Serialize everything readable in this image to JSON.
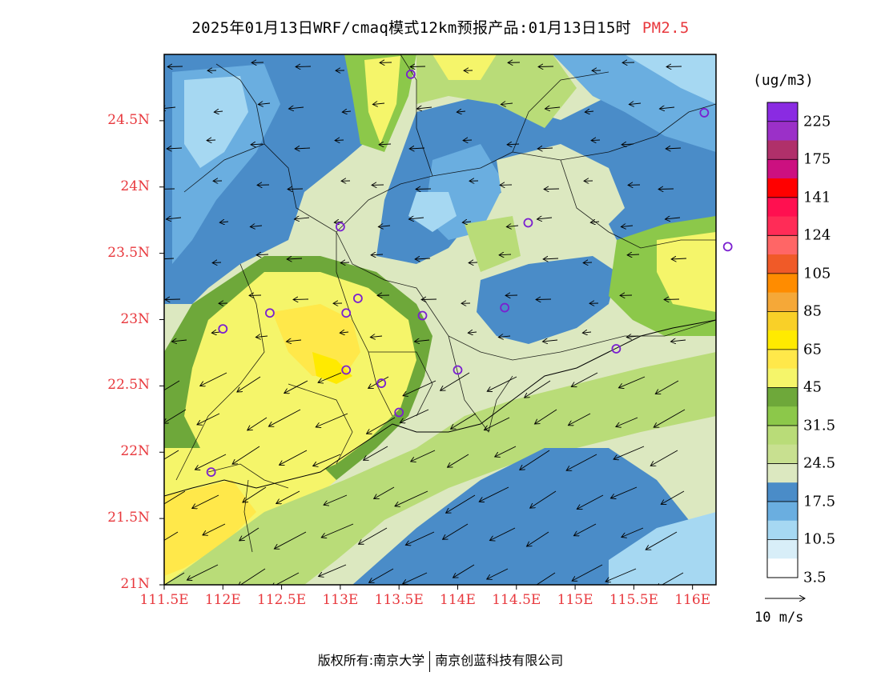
{
  "title": {
    "main": "2025年01月13日WRF/cmaq模式12km预报产品:01月13日15时",
    "variable": "PM2.5"
  },
  "axes": {
    "lat_ticks": [
      "24.5N",
      "24N",
      "23.5N",
      "23N",
      "22.5N",
      "22N",
      "21.5N",
      "21N"
    ],
    "lat_values": [
      24.5,
      24,
      23.5,
      23,
      22.5,
      22,
      21.5,
      21
    ],
    "lon_ticks": [
      "111.5E",
      "112E",
      "112.5E",
      "113E",
      "113.5E",
      "114E",
      "114.5E",
      "115E",
      "115.5E",
      "116E"
    ],
    "lon_values": [
      111.5,
      112,
      112.5,
      113,
      113.5,
      114,
      114.5,
      115,
      115.5,
      116
    ],
    "lat_range": [
      21,
      25
    ],
    "lon_range": [
      111.5,
      116.2
    ]
  },
  "colorbar": {
    "unit": "(ug/m3)",
    "labels": [
      "225",
      "175",
      "141",
      "124",
      "105",
      "85",
      "65",
      "45",
      "31.5",
      "24.5",
      "17.5",
      "10.5",
      "3.5"
    ],
    "colors": [
      "#8a2be2",
      "#9b30c8",
      "#b0306a",
      "#cc1080",
      "#ff0000",
      "#ff1050",
      "#ff2c57",
      "#ff6666",
      "#f05a28",
      "#ff8c00",
      "#f5a838",
      "#f9d028",
      "#ffea00",
      "#ffe84a",
      "#f5f56a",
      "#6ea83a",
      "#8cc84a",
      "#b9dc78",
      "#c8e090",
      "#dce8c0",
      "#4a8cc8",
      "#6aaee0",
      "#a6d8f2",
      "#d8eef8",
      "#ffffff"
    ]
  },
  "wind_reference": {
    "label": "10 m/s"
  },
  "stations": [
    {
      "lon": 113.6,
      "lat": 24.85
    },
    {
      "lon": 116.1,
      "lat": 24.56
    },
    {
      "lon": 113.0,
      "lat": 23.7
    },
    {
      "lon": 114.6,
      "lat": 23.73
    },
    {
      "lon": 116.3,
      "lat": 23.55
    },
    {
      "lon": 112.4,
      "lat": 23.05
    },
    {
      "lon": 113.05,
      "lat": 23.05
    },
    {
      "lon": 113.15,
      "lat": 23.16
    },
    {
      "lon": 113.7,
      "lat": 23.03
    },
    {
      "lon": 114.4,
      "lat": 23.09
    },
    {
      "lon": 112.0,
      "lat": 22.93
    },
    {
      "lon": 113.05,
      "lat": 22.62
    },
    {
      "lon": 113.35,
      "lat": 22.52
    },
    {
      "lon": 114.0,
      "lat": 22.62
    },
    {
      "lon": 115.35,
      "lat": 22.78
    },
    {
      "lon": 113.5,
      "lat": 22.3
    },
    {
      "lon": 111.9,
      "lat": 21.85
    }
  ],
  "footer": {
    "left": "版权所有:南京大学",
    "right": "南京创蓝科技有限公司"
  }
}
